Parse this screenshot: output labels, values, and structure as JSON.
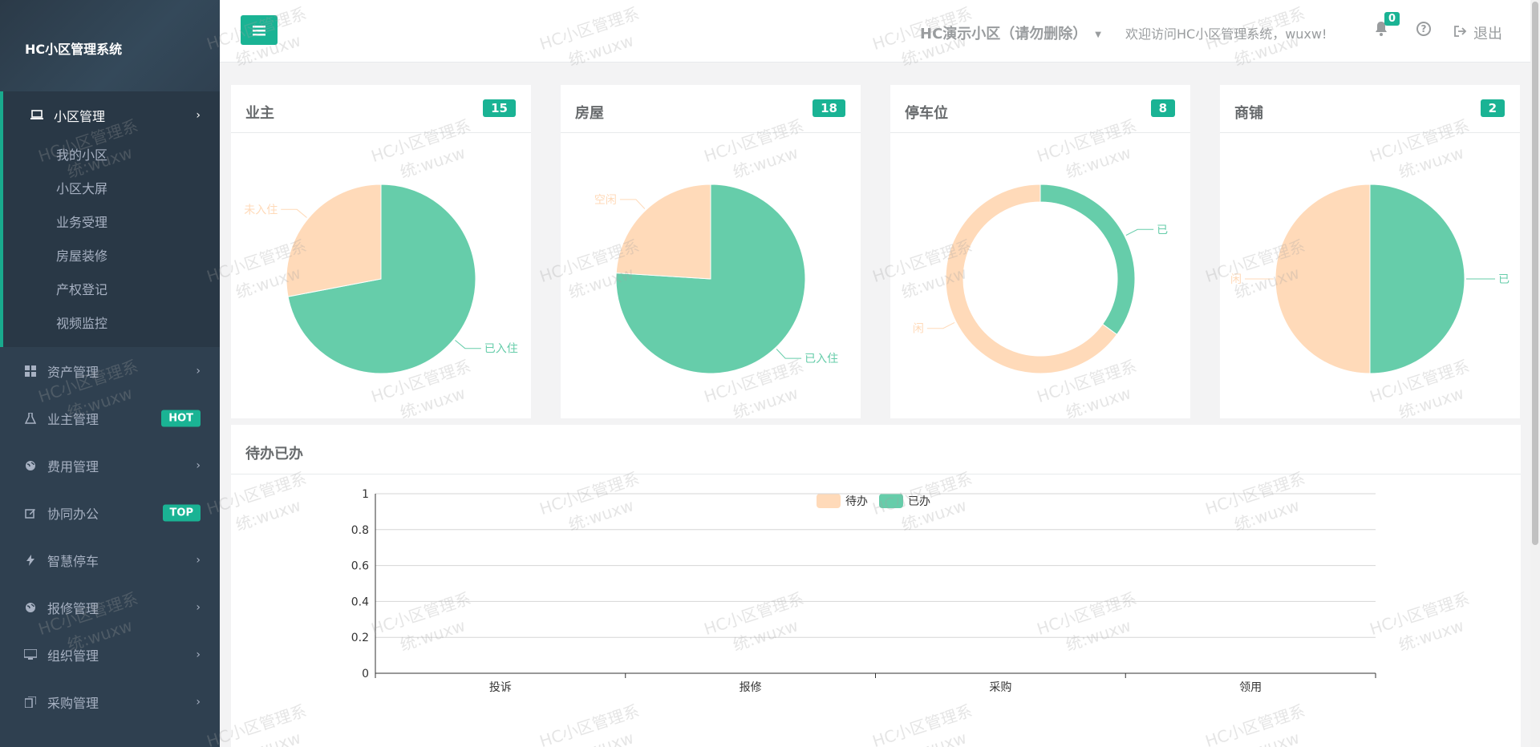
{
  "brand": "HC小区管理系统",
  "sidebar": {
    "active_group": {
      "label": "小区管理",
      "icon": "laptop-icon"
    },
    "submenu": [
      "我的小区",
      "小区大屏",
      "业务受理",
      "房屋装修",
      "产权登记",
      "视频监控"
    ],
    "items": [
      {
        "label": "资产管理",
        "icon": "grid-icon",
        "badge": ""
      },
      {
        "label": "业主管理",
        "icon": "flask-icon",
        "badge": "HOT"
      },
      {
        "label": "费用管理",
        "icon": "globe-icon",
        "badge": ""
      },
      {
        "label": "协同办公",
        "icon": "edit-icon",
        "badge": "TOP"
      },
      {
        "label": "智慧停车",
        "icon": "bolt-icon",
        "badge": ""
      },
      {
        "label": "报修管理",
        "icon": "globe-icon",
        "badge": ""
      },
      {
        "label": "组织管理",
        "icon": "desktop-icon",
        "badge": ""
      },
      {
        "label": "采购管理",
        "icon": "copy-icon",
        "badge": ""
      }
    ]
  },
  "topbar": {
    "community": "HC演示小区（请勿删除）",
    "welcome": "欢迎访问HC小区管理系统，wuxw!",
    "notification_count": "0",
    "logout": "退出"
  },
  "cards": [
    {
      "title": "业主",
      "count": "15",
      "chart": "pie",
      "labels": [
        "已入住",
        "未入住"
      ],
      "label_visible": [
        "已入住",
        "未入住"
      ]
    },
    {
      "title": "房屋",
      "count": "18",
      "chart": "pie",
      "labels": [
        "已入住",
        "空闲"
      ],
      "label_visible": [
        "已入住",
        "空闲"
      ]
    },
    {
      "title": "停车位",
      "count": "8",
      "chart": "donut",
      "labels": [
        "已",
        "空闲"
      ],
      "label_visible": [
        "已",
        "闲"
      ]
    },
    {
      "title": "商铺",
      "count": "2",
      "chart": "pie",
      "labels": [
        "已",
        "闲"
      ],
      "label_visible": [
        "已",
        "闲"
      ]
    }
  ],
  "todo": {
    "title": "待办已办",
    "legend": [
      "待办",
      "已办"
    ]
  },
  "colors": {
    "accent": "#1ab394",
    "pie_a": "#66cdaa",
    "pie_b": "#ffdab9",
    "sidebar": "#2f4050"
  },
  "chart_data": [
    {
      "type": "pie",
      "title": "业主",
      "categories": [
        "已入住",
        "未入住"
      ],
      "values": [
        72,
        28
      ],
      "colors": [
        "#66cdaa",
        "#ffdab9"
      ]
    },
    {
      "type": "pie",
      "title": "房屋",
      "categories": [
        "已入住",
        "空闲"
      ],
      "values": [
        76,
        24
      ],
      "colors": [
        "#66cdaa",
        "#ffdab9"
      ]
    },
    {
      "type": "pie",
      "title": "停车位",
      "categories": [
        "已",
        "闲"
      ],
      "values": [
        35,
        65
      ],
      "colors": [
        "#66cdaa",
        "#ffdab9"
      ],
      "donut": true
    },
    {
      "type": "pie",
      "title": "商铺",
      "categories": [
        "已",
        "闲"
      ],
      "values": [
        50,
        50
      ],
      "colors": [
        "#66cdaa",
        "#ffdab9"
      ]
    },
    {
      "type": "bar",
      "title": "待办已办",
      "categories": [
        "投诉",
        "报修",
        "采购",
        "领用"
      ],
      "series": [
        {
          "name": "待办",
          "values": [
            0,
            0,
            0,
            0
          ]
        },
        {
          "name": "已办",
          "values": [
            0,
            0,
            0,
            0
          ]
        }
      ],
      "yticks": [
        "0",
        "0.2",
        "0.4",
        "0.6",
        "0.8",
        "1"
      ],
      "ylim": [
        0,
        1
      ],
      "legend": "top-center",
      "grid": true
    }
  ]
}
